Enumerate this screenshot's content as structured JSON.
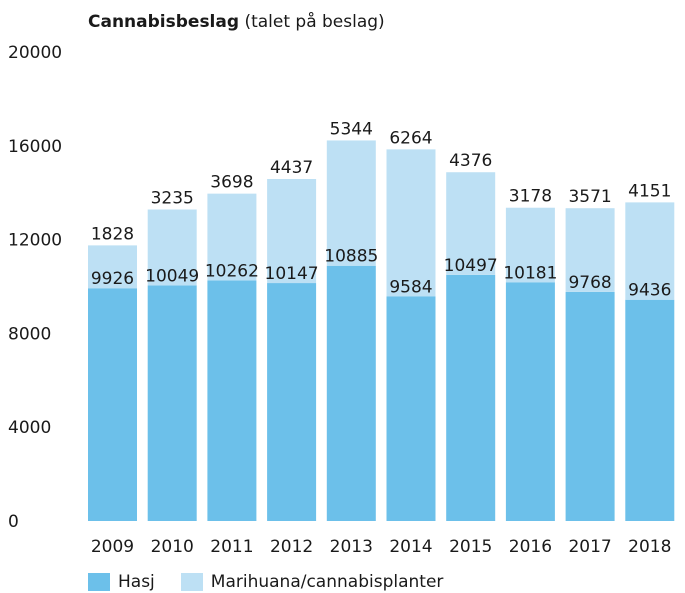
{
  "chart_data": {
    "type": "bar",
    "stacked": true,
    "title": "Cannabisbeslag",
    "subtitle": "(talet på beslag)",
    "categories": [
      "2009",
      "2010",
      "2011",
      "2012",
      "2013",
      "2014",
      "2015",
      "2016",
      "2017",
      "2018"
    ],
    "series": [
      {
        "name": "Hasj",
        "color": "#6cc0ea",
        "values": [
          9926,
          10049,
          10262,
          10147,
          10885,
          9584,
          10497,
          10181,
          9768,
          9436
        ]
      },
      {
        "name": "Marihuana/cannabisplanter",
        "color": "#bde0f4",
        "values": [
          1828,
          3235,
          3698,
          4437,
          5344,
          6264,
          4376,
          3178,
          3571,
          4151
        ]
      }
    ],
    "ylim": [
      0,
      20000
    ],
    "yticks": [
      0,
      4000,
      8000,
      12000,
      16000,
      20000
    ],
    "grid": false,
    "legend": "bottom-left"
  }
}
